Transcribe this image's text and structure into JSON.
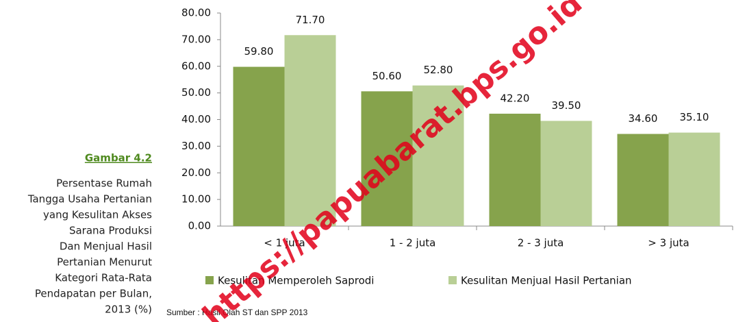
{
  "chart_data": {
    "type": "bar",
    "categories": [
      "< 1 juta",
      "1 - 2 juta",
      "2 - 3 juta",
      "> 3 juta"
    ],
    "series": [
      {
        "name": "Kesulitan Memperoleh Saprodi",
        "color": "#86a34c",
        "values": [
          59.8,
          50.6,
          42.2,
          34.6
        ],
        "value_labels": [
          "59.80",
          "50.60",
          "42.20",
          "34.60"
        ]
      },
      {
        "name": "Kesulitan Menjual Hasil Pertanian",
        "color": "#b9cf96",
        "values": [
          71.7,
          52.8,
          39.5,
          35.1
        ],
        "value_labels": [
          "71.70",
          "52.80",
          "39.50",
          "35.10"
        ]
      }
    ],
    "ylim": [
      0,
      80
    ],
    "yticks": [
      {
        "value": 0,
        "label": "0.00"
      },
      {
        "value": 10,
        "label": "10.00"
      },
      {
        "value": 20,
        "label": "20.00"
      },
      {
        "value": 30,
        "label": "30.00"
      },
      {
        "value": 40,
        "label": "40.00"
      },
      {
        "value": 50,
        "label": "50.00"
      },
      {
        "value": 60,
        "label": "60.00"
      },
      {
        "value": 70,
        "label": "70.00"
      },
      {
        "value": 80,
        "label": "80.00"
      }
    ],
    "legend": "bottom"
  },
  "figure_label": "Gambar 4.2",
  "caption_lines": [
    "Persentase Rumah",
    "Tangga Usaha Pertanian",
    "yang Kesulitan Akses",
    "Sarana Produksi",
    "Dan Menjual Hasil",
    "Pertanian Menurut",
    "Kategori Rata-Rata",
    "Pendapatan per Bulan,",
    "2013 (%)"
  ],
  "source": "Sumber : Hasil Olah ST dan SPP 2013",
  "watermark": "https://papuabarat.bps.go.id"
}
